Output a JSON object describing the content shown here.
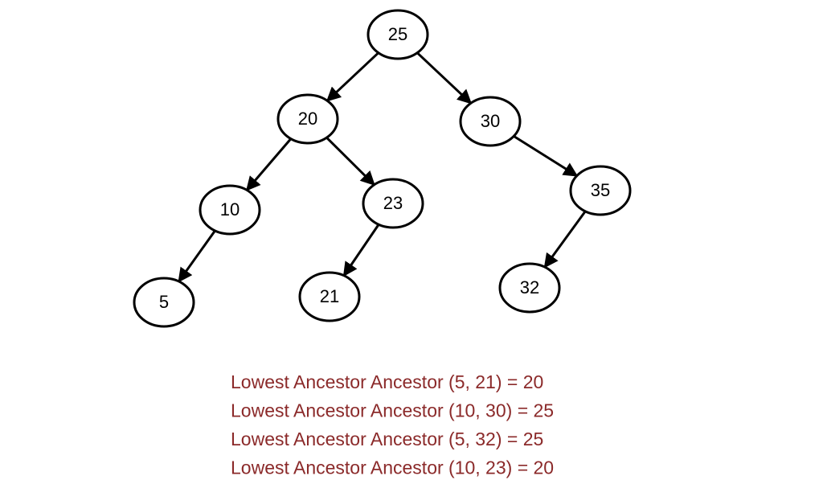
{
  "nodes": [
    {
      "label": "25"
    },
    {
      "label": "20"
    },
    {
      "label": "30"
    },
    {
      "label": "10"
    },
    {
      "label": "23"
    },
    {
      "label": "35"
    },
    {
      "label": "5"
    },
    {
      "label": "21"
    },
    {
      "label": "32"
    }
  ],
  "captions": [
    "Lowest Ancestor Ancestor (5, 21) = 20",
    "Lowest Ancestor Ancestor (10, 30) = 25",
    "Lowest Ancestor Ancestor (5, 32) = 25",
    "Lowest Ancestor Ancestor (10, 23) = 20"
  ]
}
